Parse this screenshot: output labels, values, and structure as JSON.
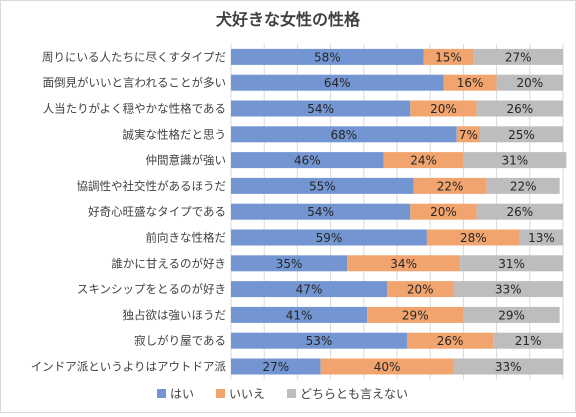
{
  "chart_data": {
    "type": "bar",
    "orientation": "horizontal",
    "stacked": "percent",
    "title": "犬好きな女性の性格",
    "categories": [
      "周りにいる人たちに尽くすタイプだ",
      "面倒見がいいと言われることが多い",
      "人当たりがよく穏やかな性格である",
      "誠実な性格だと思う",
      "仲間意識が強い",
      "協調性や社交性があるほうだ",
      "好奇心旺盛なタイプである",
      "前向きな性格だ",
      "誰かに甘えるのが好き",
      "スキンシップをとるのが好き",
      "独占欲は強いほうだ",
      "寂しがり屋である",
      "インドア派というよりはアウトドア派"
    ],
    "series": [
      {
        "name": "はい",
        "color": "#7396D2",
        "values": [
          58,
          64,
          54,
          68,
          46,
          55,
          54,
          59,
          35,
          47,
          41,
          53,
          27
        ]
      },
      {
        "name": "いいえ",
        "color": "#F2A46E",
        "values": [
          15,
          16,
          20,
          7,
          24,
          22,
          20,
          28,
          34,
          20,
          29,
          26,
          40
        ]
      },
      {
        "name": "どちらとも言えない",
        "color": "#BDBDBD",
        "values": [
          27,
          20,
          26,
          25,
          31,
          22,
          26,
          13,
          31,
          33,
          29,
          21,
          33
        ]
      }
    ],
    "value_suffix": "%",
    "xlim": [
      0,
      100
    ],
    "grid": true,
    "legend": "bottom"
  }
}
